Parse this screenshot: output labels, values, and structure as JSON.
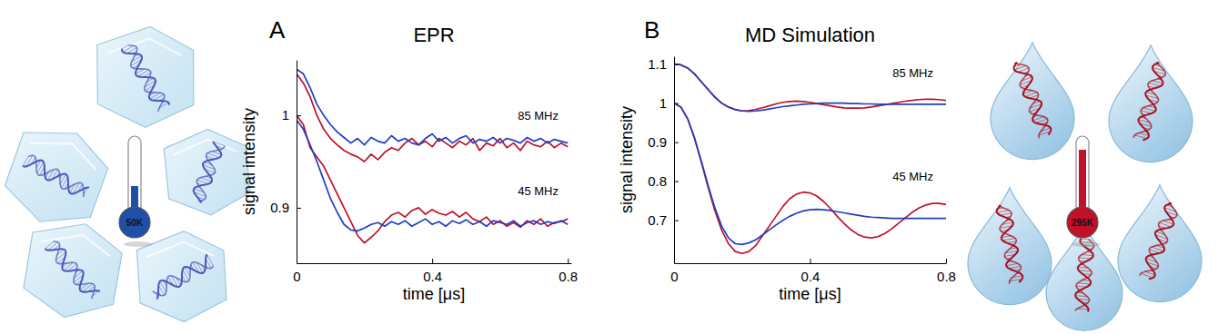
{
  "chart_data": [
    {
      "type": "line",
      "title": "EPR",
      "x_label": "time [μs]",
      "y_label": "signal intensity",
      "annotations": [
        "A",
        "85 MHz",
        "45 MHz"
      ],
      "xlim": [
        0,
        0.81
      ],
      "ylim": [
        0.84,
        1.06
      ],
      "xticks": [
        0,
        0.4,
        0.8
      ],
      "yticks": [
        0.9,
        1
      ],
      "x": [
        0,
        0.02,
        0.04,
        0.06,
        0.08,
        0.1,
        0.12,
        0.14,
        0.16,
        0.18,
        0.2,
        0.22,
        0.24,
        0.26,
        0.28,
        0.3,
        0.32,
        0.34,
        0.36,
        0.38,
        0.4,
        0.42,
        0.44,
        0.46,
        0.48,
        0.5,
        0.52,
        0.54,
        0.56,
        0.58,
        0.6,
        0.62,
        0.64,
        0.66,
        0.68,
        0.7,
        0.72,
        0.74,
        0.76,
        0.78,
        0.8
      ],
      "series": [
        {
          "color": "#c0102a",
          "values": [
            1.045,
            1.035,
            1.02,
            1.0,
            0.985,
            0.975,
            0.968,
            0.962,
            0.958,
            0.955,
            0.95,
            0.958,
            0.952,
            0.96,
            0.965,
            0.962,
            0.97,
            0.975,
            0.968,
            0.972,
            0.966,
            0.975,
            0.97,
            0.965,
            0.972,
            0.968,
            0.975,
            0.962,
            0.97,
            0.967,
            0.975,
            0.965,
            0.97,
            0.962,
            0.972,
            0.968,
            0.966,
            0.972,
            0.965,
            0.97,
            0.966
          ]
        },
        {
          "color": "#1f3fbf",
          "values": [
            1.05,
            1.045,
            1.03,
            1.012,
            1.0,
            0.99,
            0.982,
            0.976,
            0.97,
            0.975,
            0.968,
            0.976,
            0.972,
            0.97,
            0.978,
            0.972,
            0.975,
            0.97,
            0.968,
            0.975,
            0.98,
            0.972,
            0.976,
            0.97,
            0.975,
            0.978,
            0.97,
            0.974,
            0.972,
            0.976,
            0.97,
            0.975,
            0.973,
            0.97,
            0.976,
            0.972,
            0.975,
            0.97,
            0.974,
            0.972,
            0.97
          ]
        },
        {
          "color": "#c0102a",
          "values": [
            1.0,
            0.99,
            0.965,
            0.955,
            0.945,
            0.93,
            0.915,
            0.9,
            0.885,
            0.87,
            0.862,
            0.868,
            0.875,
            0.885,
            0.892,
            0.895,
            0.89,
            0.897,
            0.9,
            0.893,
            0.898,
            0.894,
            0.892,
            0.896,
            0.89,
            0.895,
            0.888,
            0.885,
            0.89,
            0.882,
            0.886,
            0.88,
            0.884,
            0.879,
            0.886,
            0.882,
            0.888,
            0.88,
            0.884,
            0.885,
            0.888
          ]
        },
        {
          "color": "#1f3fbf",
          "values": [
            0.995,
            0.985,
            0.968,
            0.95,
            0.93,
            0.91,
            0.895,
            0.882,
            0.876,
            0.875,
            0.878,
            0.882,
            0.884,
            0.88,
            0.885,
            0.882,
            0.886,
            0.88,
            0.884,
            0.888,
            0.882,
            0.885,
            0.88,
            0.886,
            0.883,
            0.887,
            0.882,
            0.885,
            0.88,
            0.886,
            0.884,
            0.882,
            0.886,
            0.88,
            0.884,
            0.886,
            0.882,
            0.885,
            0.883,
            0.886,
            0.882
          ]
        }
      ]
    },
    {
      "type": "line",
      "title": "MD Simulation",
      "x_label": "time [μs]",
      "y_label": "signal intensity",
      "annotations": [
        "B",
        "85 MHz",
        "45 MHz"
      ],
      "xlim": [
        0,
        0.8
      ],
      "ylim": [
        0.59,
        1.12
      ],
      "xticks": [
        0,
        0.4,
        0.8
      ],
      "yticks": [
        0.7,
        0.8,
        0.9,
        1,
        1.1
      ],
      "x": [
        0,
        0.02,
        0.04,
        0.06,
        0.08,
        0.1,
        0.12,
        0.14,
        0.16,
        0.18,
        0.2,
        0.22,
        0.24,
        0.26,
        0.28,
        0.3,
        0.32,
        0.34,
        0.36,
        0.38,
        0.4,
        0.42,
        0.44,
        0.46,
        0.48,
        0.5,
        0.52,
        0.54,
        0.56,
        0.58,
        0.6,
        0.62,
        0.64,
        0.66,
        0.68,
        0.7,
        0.72,
        0.74,
        0.76,
        0.78,
        0.8
      ],
      "series": [
        {
          "color": "#c0102a",
          "values": [
            1.1,
            1.098,
            1.09,
            1.075,
            1.055,
            1.035,
            1.015,
            1.0,
            0.99,
            0.983,
            0.98,
            0.981,
            0.984,
            0.988,
            0.993,
            0.998,
            1.002,
            1.004,
            1.005,
            1.004,
            1.002,
            0.999,
            0.996,
            0.993,
            0.99,
            0.988,
            0.987,
            0.987,
            0.988,
            0.99,
            0.993,
            0.996,
            0.999,
            1.002,
            1.005,
            1.007,
            1.009,
            1.01,
            1.01,
            1.009,
            1.007
          ]
        },
        {
          "color": "#1f3fbf",
          "values": [
            1.1,
            1.098,
            1.09,
            1.075,
            1.055,
            1.035,
            1.016,
            1.0,
            0.99,
            0.984,
            0.98,
            0.979,
            0.98,
            0.982,
            0.985,
            0.988,
            0.991,
            0.993,
            0.995,
            0.997,
            0.998,
            0.999,
            1.0,
            1.0,
            1.0,
            1.0,
            0.999,
            0.999,
            0.998,
            0.998,
            0.997,
            0.997,
            0.997,
            0.997,
            0.997,
            0.997,
            0.997,
            0.997,
            0.997,
            0.997,
            0.997
          ]
        },
        {
          "color": "#c0102a",
          "values": [
            1.0,
            0.99,
            0.96,
            0.91,
            0.85,
            0.785,
            0.725,
            0.675,
            0.64,
            0.62,
            0.615,
            0.62,
            0.635,
            0.66,
            0.685,
            0.71,
            0.735,
            0.755,
            0.767,
            0.772,
            0.77,
            0.762,
            0.748,
            0.73,
            0.71,
            0.692,
            0.676,
            0.664,
            0.657,
            0.655,
            0.658,
            0.666,
            0.678,
            0.692,
            0.706,
            0.72,
            0.731,
            0.739,
            0.743,
            0.743,
            0.74
          ]
        },
        {
          "color": "#1f3fbf",
          "values": [
            1.0,
            0.99,
            0.96,
            0.912,
            0.852,
            0.79,
            0.732,
            0.685,
            0.655,
            0.64,
            0.638,
            0.642,
            0.65,
            0.662,
            0.675,
            0.688,
            0.7,
            0.71,
            0.718,
            0.724,
            0.727,
            0.728,
            0.727,
            0.725,
            0.722,
            0.719,
            0.716,
            0.713,
            0.71,
            0.708,
            0.707,
            0.706,
            0.705,
            0.705,
            0.705,
            0.705,
            0.705,
            0.705,
            0.705,
            0.705,
            0.705
          ]
        }
      ]
    }
  ],
  "illustrations": [
    {
      "thermometer": "50K"
    },
    {
      "thermometer": "295K"
    }
  ]
}
